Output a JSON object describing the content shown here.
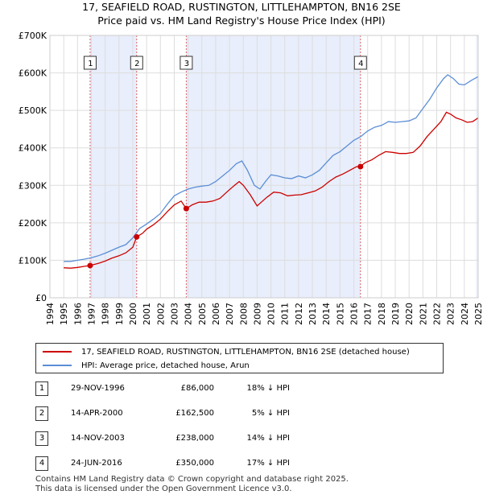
{
  "title_line1": "17, SEAFIELD ROAD, RUSTINGTON, LITTLEHAMPTON, BN16 2SE",
  "title_line2": "Price paid vs. HM Land Registry's House Price Index (HPI)",
  "colors": {
    "property": "#cc0000",
    "hpi": "#5b8ed6",
    "shade": "#e8eefb",
    "grid": "#dddddd",
    "marker_line": "#e06060"
  },
  "chart_data": {
    "type": "line",
    "title": "Price paid vs. HM Land Registry's House Price Index (HPI)",
    "xlabel": "",
    "ylabel": "",
    "xlim": [
      1994,
      2025
    ],
    "ylim": [
      0,
      700000
    ],
    "y_ticks": [
      {
        "value": 0,
        "label": "£0"
      },
      {
        "value": 100000,
        "label": "£100K"
      },
      {
        "value": 200000,
        "label": "£200K"
      },
      {
        "value": 300000,
        "label": "£300K"
      },
      {
        "value": 400000,
        "label": "£400K"
      },
      {
        "value": 500000,
        "label": "£500K"
      },
      {
        "value": 600000,
        "label": "£600K"
      },
      {
        "value": 700000,
        "label": "£700K"
      }
    ],
    "x_ticks": [
      "1994",
      "1995",
      "1996",
      "1997",
      "1998",
      "1999",
      "2000",
      "2001",
      "2002",
      "2003",
      "2004",
      "2005",
      "2006",
      "2007",
      "2008",
      "2009",
      "2010",
      "2011",
      "2012",
      "2013",
      "2014",
      "2015",
      "2016",
      "2017",
      "2018",
      "2019",
      "2020",
      "2021",
      "2022",
      "2023",
      "2024",
      "2025"
    ],
    "series": [
      {
        "name": "17, SEAFIELD ROAD, RUSTINGTON, LITTLEHAMPTON, BN16 2SE (detached house)",
        "color": "#cc0000",
        "x": [
          1995.0,
          1995.5,
          1996.0,
          1996.5,
          1996.91,
          1997.5,
          1998.0,
          1998.5,
          1999.0,
          1999.5,
          2000.0,
          2000.28,
          2000.7,
          2001.0,
          2001.5,
          2002.0,
          2002.5,
          2003.0,
          2003.5,
          2003.87,
          2004.3,
          2004.8,
          2005.3,
          2005.8,
          2006.3,
          2006.8,
          2007.3,
          2007.7,
          2008.0,
          2008.5,
          2009.0,
          2009.3,
          2009.7,
          2010.2,
          2010.7,
          2011.2,
          2011.7,
          2012.2,
          2012.7,
          2013.2,
          2013.7,
          2014.2,
          2014.7,
          2015.2,
          2015.7,
          2016.2,
          2016.48,
          2016.8,
          2017.3,
          2017.8,
          2018.3,
          2018.8,
          2019.3,
          2019.8,
          2020.3,
          2020.8,
          2021.3,
          2021.8,
          2022.3,
          2022.7,
          2023.0,
          2023.4,
          2023.8,
          2024.2,
          2024.6,
          2025.0
        ],
        "values": [
          80000,
          79000,
          81000,
          84000,
          86000,
          92000,
          98000,
          106000,
          112000,
          120000,
          135000,
          162500,
          172000,
          183000,
          195000,
          210000,
          230000,
          248000,
          258000,
          238000,
          248000,
          255000,
          255000,
          258000,
          265000,
          282000,
          298000,
          310000,
          300000,
          275000,
          245000,
          255000,
          268000,
          282000,
          280000,
          272000,
          274000,
          275000,
          280000,
          285000,
          295000,
          310000,
          322000,
          330000,
          340000,
          350000,
          350000,
          360000,
          368000,
          380000,
          390000,
          388000,
          385000,
          385000,
          388000,
          405000,
          430000,
          450000,
          470000,
          495000,
          490000,
          480000,
          475000,
          468000,
          470000,
          480000
        ]
      },
      {
        "name": "HPI: Average price, detached house, Arun",
        "color": "#5b8ed6",
        "x": [
          1995.0,
          1995.5,
          1996.0,
          1996.5,
          1997.0,
          1997.5,
          1998.0,
          1998.5,
          1999.0,
          1999.5,
          2000.0,
          2000.5,
          2001.0,
          2001.5,
          2002.0,
          2002.5,
          2003.0,
          2003.5,
          2004.0,
          2004.5,
          2005.0,
          2005.5,
          2006.0,
          2006.5,
          2007.0,
          2007.5,
          2007.9,
          2008.3,
          2008.8,
          2009.2,
          2009.6,
          2010.0,
          2010.5,
          2011.0,
          2011.5,
          2012.0,
          2012.5,
          2013.0,
          2013.5,
          2014.0,
          2014.5,
          2015.0,
          2015.5,
          2016.0,
          2016.5,
          2017.0,
          2017.5,
          2018.0,
          2018.5,
          2019.0,
          2019.5,
          2020.0,
          2020.5,
          2021.0,
          2021.5,
          2022.0,
          2022.5,
          2022.8,
          2023.2,
          2023.6,
          2024.0,
          2024.5,
          2025.0
        ],
        "values": [
          97000,
          97000,
          100000,
          103000,
          107000,
          112000,
          119000,
          127000,
          135000,
          142000,
          160000,
          185000,
          197000,
          210000,
          225000,
          250000,
          272000,
          282000,
          290000,
          295000,
          298000,
          300000,
          310000,
          325000,
          340000,
          358000,
          365000,
          340000,
          300000,
          290000,
          310000,
          328000,
          325000,
          320000,
          318000,
          325000,
          320000,
          328000,
          340000,
          360000,
          380000,
          390000,
          405000,
          420000,
          430000,
          445000,
          455000,
          460000,
          470000,
          468000,
          470000,
          472000,
          480000,
          505000,
          530000,
          560000,
          585000,
          595000,
          585000,
          570000,
          568000,
          580000,
          590000
        ]
      }
    ],
    "sales": [
      {
        "num": "1",
        "x": 1996.91,
        "price": 86000,
        "date": "29-NOV-1996",
        "price_label": "£86,000",
        "hpi_label": "18% ↓ HPI"
      },
      {
        "num": "2",
        "x": 2000.28,
        "price": 162500,
        "date": "14-APR-2000",
        "price_label": "£162,500",
        "hpi_label": "5% ↓ HPI"
      },
      {
        "num": "3",
        "x": 2003.87,
        "price": 238000,
        "date": "14-NOV-2003",
        "price_label": "£238,000",
        "hpi_label": "14% ↓ HPI"
      },
      {
        "num": "4",
        "x": 2016.48,
        "price": 350000,
        "date": "24-JUN-2016",
        "price_label": "£350,000",
        "hpi_label": "17% ↓ HPI"
      }
    ]
  },
  "legend": {
    "property_label": "17, SEAFIELD ROAD, RUSTINGTON, LITTLEHAMPTON, BN16 2SE (detached house)",
    "hpi_label": "HPI: Average price, detached house, Arun"
  },
  "footer": {
    "line1": "Contains HM Land Registry data © Crown copyright and database right 2025.",
    "line2": "This data is licensed under the Open Government Licence v3.0."
  }
}
